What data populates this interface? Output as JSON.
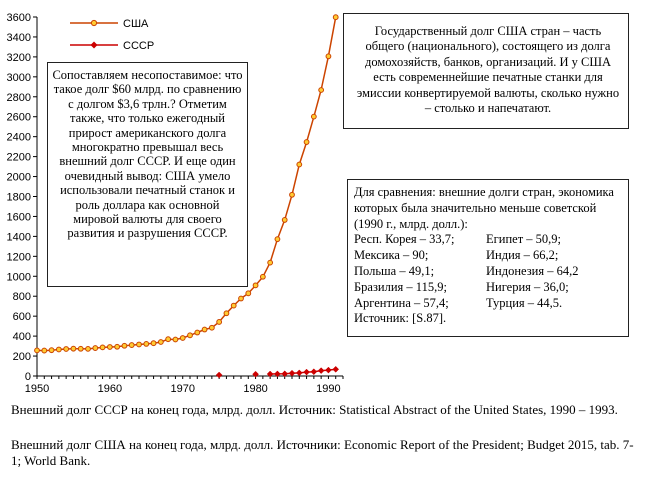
{
  "chart_data": {
    "type": "line",
    "x_range": [
      1950,
      1992
    ],
    "ylim": [
      0,
      3600
    ],
    "x_ticks": [
      "1950",
      "1960",
      "1970",
      "1980",
      "1990"
    ],
    "y_ticks": [
      "0",
      "200",
      "400",
      "600",
      "800",
      "1000",
      "1200",
      "1400",
      "1600",
      "1800",
      "2000",
      "2200",
      "2400",
      "2600",
      "2800",
      "3000",
      "3200",
      "3400",
      "3600"
    ],
    "grid": false,
    "legend": "top-left",
    "series": [
      {
        "name": "США",
        "color": "#cc4400",
        "marker": "circle",
        "points": [
          [
            1950,
            257
          ],
          [
            1951,
            255
          ],
          [
            1952,
            259
          ],
          [
            1953,
            266
          ],
          [
            1954,
            271
          ],
          [
            1955,
            274
          ],
          [
            1956,
            273
          ],
          [
            1957,
            272
          ],
          [
            1958,
            280
          ],
          [
            1959,
            287
          ],
          [
            1960,
            291
          ],
          [
            1961,
            293
          ],
          [
            1962,
            303
          ],
          [
            1963,
            310
          ],
          [
            1964,
            316
          ],
          [
            1965,
            322
          ],
          [
            1966,
            329
          ],
          [
            1967,
            341
          ],
          [
            1968,
            369
          ],
          [
            1969,
            366
          ],
          [
            1970,
            381
          ],
          [
            1971,
            408
          ],
          [
            1972,
            436
          ],
          [
            1973,
            466
          ],
          [
            1974,
            484
          ],
          [
            1975,
            542
          ],
          [
            1976,
            629
          ],
          [
            1977,
            706
          ],
          [
            1978,
            777
          ],
          [
            1979,
            829
          ],
          [
            1980,
            909
          ],
          [
            1981,
            995
          ],
          [
            1982,
            1137
          ],
          [
            1983,
            1372
          ],
          [
            1984,
            1565
          ],
          [
            1985,
            1817
          ],
          [
            1986,
            2121
          ],
          [
            1987,
            2346
          ],
          [
            1988,
            2601
          ],
          [
            1989,
            2868
          ],
          [
            1990,
            3206
          ],
          [
            1991,
            3598
          ]
        ]
      },
      {
        "name": "СССР",
        "color": "#cc0000",
        "marker": "diamond",
        "points": [
          [
            1975,
            10
          ],
          [
            1980,
            18
          ],
          [
            1982,
            20
          ],
          [
            1983,
            21
          ],
          [
            1984,
            22
          ],
          [
            1985,
            28
          ],
          [
            1986,
            31
          ],
          [
            1987,
            39
          ],
          [
            1988,
            43
          ],
          [
            1989,
            54
          ],
          [
            1990,
            59
          ],
          [
            1991,
            67
          ]
        ]
      }
    ]
  },
  "annotations": {
    "us_debt_text": "Государственный долг США стран – часть общего (национального), состоящего из долга домохозяйств, банков, организаций. И у США есть современнейшие печатные станки для эмиссии конвертируемой валюты, сколько нужно – столько и напечатают.",
    "comparison": {
      "header": "Для сравнения: внешние долги стран, экономика которых была значительно меньше советской (1990 г., млрд. долл.):",
      "rows": [
        [
          "Респ. Корея – 33,7;",
          "Египет – 50,9;"
        ],
        [
          "Мексика – 90;",
          "Индия – 66,2;"
        ],
        [
          "Польша – 49,1;",
          "Индонезия – 64,2"
        ],
        [
          "Бразилия – 115,9;",
          "Нигерия – 36,0;"
        ],
        [
          "Аргентина – 57,4;",
          "Турция – 44,5."
        ]
      ],
      "source": "Источник: [S.87]."
    },
    "comparison_text": "Сопоставляем несопоставимое: что такое долг $60 млрд. по сравнению с долгом $3,6 трлн.? Отметим также, что только ежегодный прирост американского долга многократно превышал весь внешний долг СССР. И еще один очевидный вывод: США умело использовали печатный станок и роль доллара как основной мировой валюты для своего развития и разрушения СССР."
  },
  "footnotes": {
    "ussr": "Внешний долг СССР на конец года, млрд. долл. Источник: Statistical Abstract of the United States, 1990 – 1993.",
    "usa": "Внешний долг США на конец года, млрд. долл. Источники: Economic Report of the President; Budget 2015, tab. 7-1; World Bank."
  }
}
